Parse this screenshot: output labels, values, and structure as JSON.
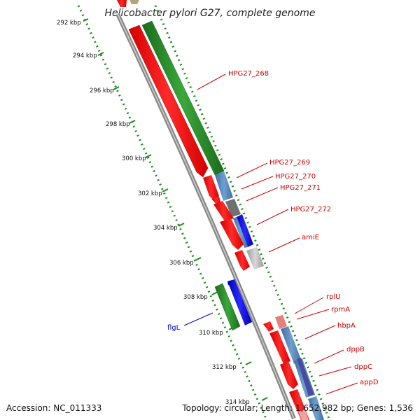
{
  "title": "Helicobacter pylori G27, complete genome",
  "colors": {
    "forward_gene": "#ff0000",
    "reverse_gene": "#ff0000",
    "cds_green": "#2e8b2e",
    "blue": "#0000ff",
    "steel": "#5f8fbf",
    "gray": "#8c8c8c",
    "label_red": "#cc0000",
    "label_blue": "#0000cc",
    "dotted_ring": "#1a8c1a"
  },
  "ticks": [
    {
      "label": "292 kbp"
    },
    {
      "label": "294 kbp"
    },
    {
      "label": "296 kbp"
    },
    {
      "label": "298 kbp"
    },
    {
      "label": "300 kbp"
    },
    {
      "label": "302 kbp"
    },
    {
      "label": "304 kbp"
    },
    {
      "label": "306 kbp"
    },
    {
      "label": "308 kbp"
    },
    {
      "label": "310 kbp"
    },
    {
      "label": "312 kbp"
    },
    {
      "label": "314 kbp"
    }
  ],
  "genes": [
    {
      "name": "HPG27_268",
      "color": "label_red"
    },
    {
      "name": "HPG27_269",
      "color": "label_red"
    },
    {
      "name": "HPG27_270",
      "color": "label_red"
    },
    {
      "name": "HPG27_271",
      "color": "label_red"
    },
    {
      "name": "HPG27_272",
      "color": "label_red"
    },
    {
      "name": "amiE",
      "color": "label_red"
    },
    {
      "name": "rplU",
      "color": "label_red"
    },
    {
      "name": "rpmA",
      "color": "label_red"
    },
    {
      "name": "hbpA",
      "color": "label_red"
    },
    {
      "name": "dppB",
      "color": "label_red"
    },
    {
      "name": "dppC",
      "color": "label_red"
    },
    {
      "name": "appD",
      "color": "label_red"
    },
    {
      "name": "flgL",
      "color": "label_blue"
    }
  ],
  "footer": {
    "accession": "Accession: NC_011333",
    "summary": "Topology: circular; Length: 1,652,982 bp; Genes: 1,536"
  }
}
